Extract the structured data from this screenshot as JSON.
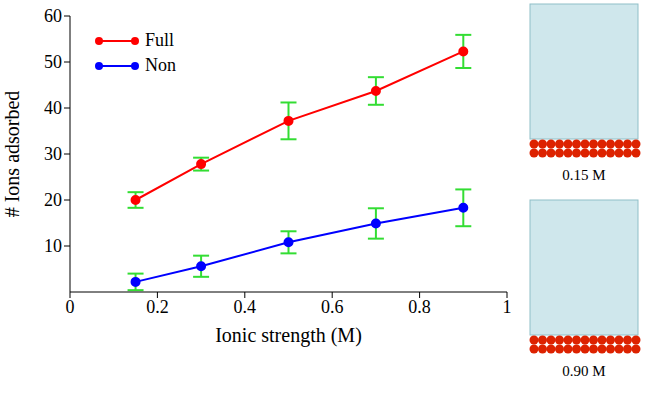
{
  "chart_data": {
    "type": "line",
    "x_label": "Ionic strength (M)",
    "y_label": "# Ions adsorbed",
    "x": [
      0.15,
      0.3,
      0.5,
      0.7,
      0.9
    ],
    "series": [
      {
        "name": "Full",
        "color": "#ff0000",
        "marker": "circle",
        "values": [
          20,
          27.8,
          37.2,
          43.7,
          52.3
        ],
        "errors": [
          1.7,
          1.4,
          4.0,
          3.0,
          3.6
        ]
      },
      {
        "name": "Non",
        "color": "#0000ff",
        "marker": "circle",
        "values": [
          2.2,
          5.6,
          10.8,
          14.9,
          18.3
        ],
        "errors": [
          1.8,
          2.3,
          2.4,
          3.3,
          4.0
        ]
      }
    ],
    "error_color": "#33dd33",
    "xlim": [
      0,
      1
    ],
    "xticks": [
      0,
      0.2,
      0.4,
      0.6,
      0.8,
      1
    ],
    "ylim": [
      0,
      60
    ],
    "yticks": [
      10,
      20,
      30,
      40,
      50,
      60
    ],
    "grid": false,
    "legend": "upper left"
  },
  "images": [
    {
      "caption": "0.15 M"
    },
    {
      "caption": "0.90 M"
    }
  ]
}
